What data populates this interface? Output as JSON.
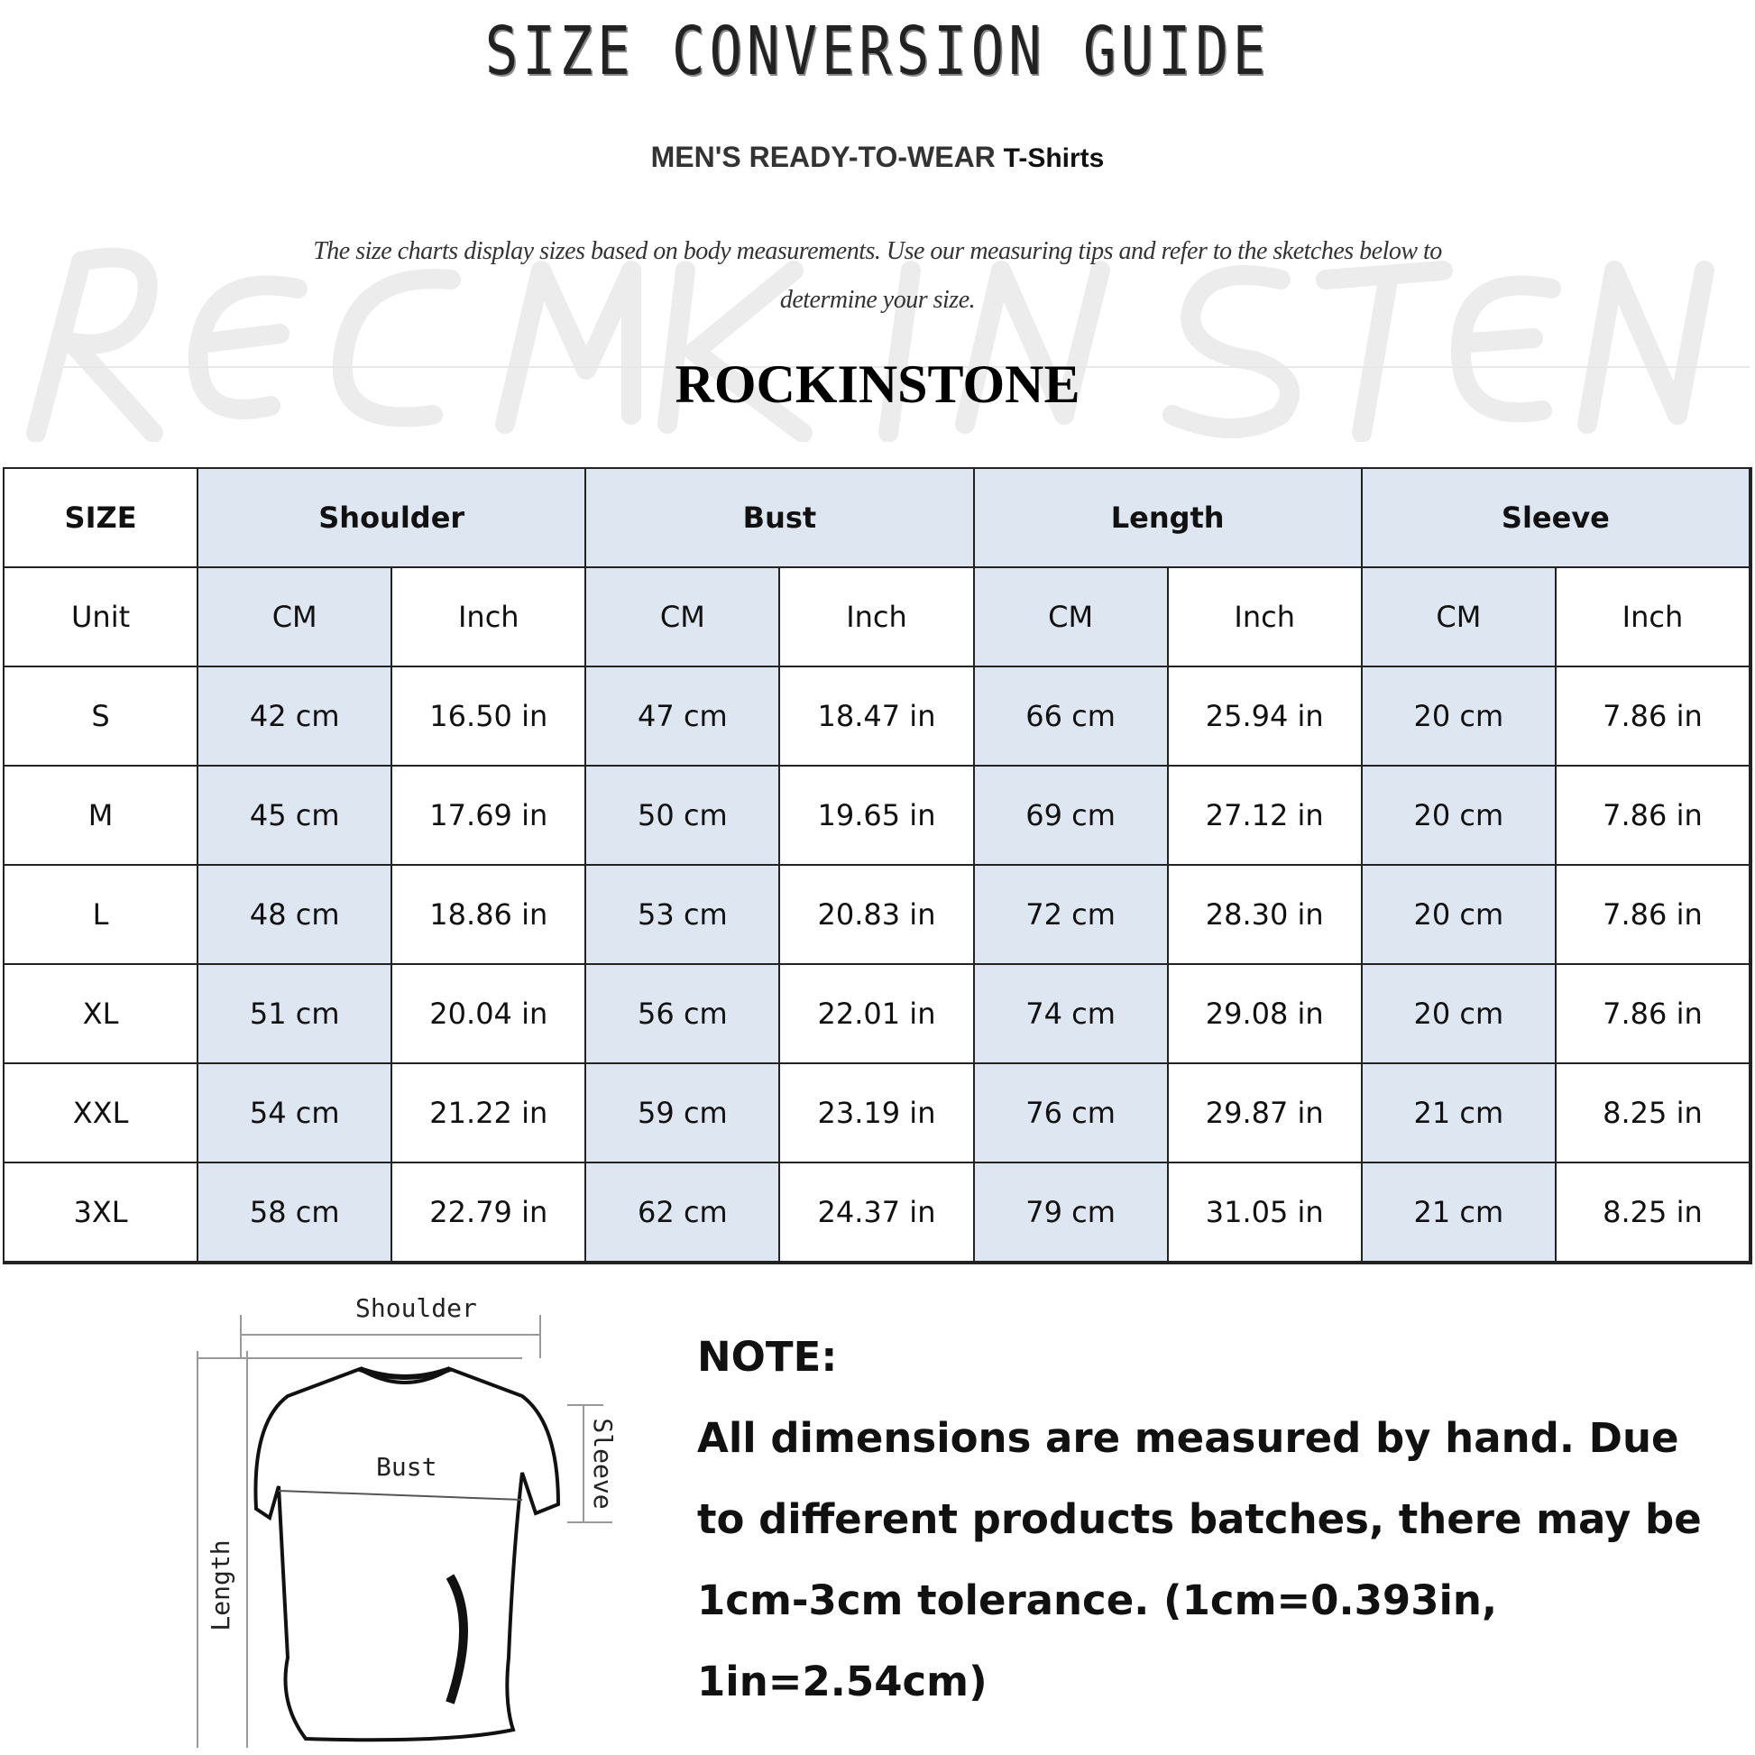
{
  "header": {
    "title": "SIZE CONVERSION GUIDE",
    "subtitle_main": "MEN'S READY-TO-WEAR",
    "subtitle_product": "T-Shirts",
    "intro": "The size charts display sizes based on body measurements. Use our measuring tips and refer to the sketches below to determine your size.",
    "brand": "ROCKINSTONE",
    "watermark": "ROCKINSTONE"
  },
  "table": {
    "size_label": "SIZE",
    "unit_label": "Unit",
    "groups": [
      "Shoulder",
      "Bust",
      "Length",
      "Sleeve"
    ],
    "units": [
      "CM",
      "Inch",
      "CM",
      "Inch",
      "CM",
      "Inch",
      "CM",
      "Inch"
    ],
    "rows": [
      {
        "size": "S",
        "values": [
          "42 cm",
          "16.50 in",
          "47 cm",
          "18.47 in",
          "66 cm",
          "25.94 in",
          "20 cm",
          "7.86 in"
        ]
      },
      {
        "size": "M",
        "values": [
          "45 cm",
          "17.69 in",
          "50 cm",
          "19.65 in",
          "69 cm",
          "27.12 in",
          "20 cm",
          "7.86 in"
        ]
      },
      {
        "size": "L",
        "values": [
          "48 cm",
          "18.86 in",
          "53 cm",
          "20.83 in",
          "72 cm",
          "28.30 in",
          "20 cm",
          "7.86 in"
        ]
      },
      {
        "size": "XL",
        "values": [
          "51 cm",
          "20.04 in",
          "56 cm",
          "22.01 in",
          "74 cm",
          "29.08 in",
          "20 cm",
          "7.86 in"
        ]
      },
      {
        "size": "XXL",
        "values": [
          "54 cm",
          "21.22 in",
          "59 cm",
          "23.19 in",
          "76 cm",
          "29.87 in",
          "21 cm",
          "8.25 in"
        ]
      },
      {
        "size": "3XL",
        "values": [
          "58 cm",
          "22.79 in",
          "62 cm",
          "24.37 in",
          "79 cm",
          "31.05 in",
          "21 cm",
          "8.25 in"
        ]
      }
    ],
    "highlight_color": "#dde6f1"
  },
  "diagram": {
    "shoulder": "Shoulder",
    "bust": "Bust",
    "length": "Length",
    "sleeve": "Sleeve"
  },
  "note": {
    "heading": "NOTE:",
    "text": "All dimensions are measured by hand. Due to different products batches, there may be 1cm-3cm tolerance. (1cm=0.393in, 1in=2.54cm)"
  }
}
